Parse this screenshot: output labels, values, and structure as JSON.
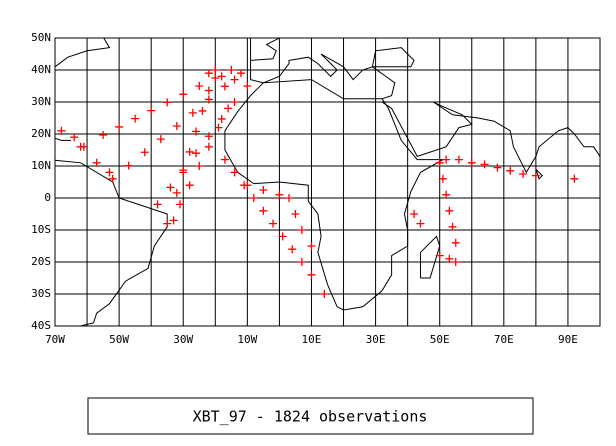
{
  "chart_data": {
    "type": "scatter",
    "title": "XBT_97 - 1824 observations",
    "color": "#ff0000",
    "xlim": [
      -70,
      100
    ],
    "ylim": [
      -40,
      50
    ],
    "xticks": [
      {
        "value": -70,
        "label": "70W"
      },
      {
        "value": -50,
        "label": "50W"
      },
      {
        "value": -30,
        "label": "30W"
      },
      {
        "value": -10,
        "label": "10W"
      },
      {
        "value": 10,
        "label": "10E"
      },
      {
        "value": 30,
        "label": "30E"
      },
      {
        "value": 50,
        "label": "50E"
      },
      {
        "value": 70,
        "label": "70E"
      },
      {
        "value": 90,
        "label": "90E"
      }
    ],
    "xgrid": [
      -60,
      -40,
      -20,
      0,
      20,
      40,
      60,
      80,
      100
    ],
    "yticks": [
      {
        "value": -40,
        "label": "40S"
      },
      {
        "value": -30,
        "label": "30S"
      },
      {
        "value": -20,
        "label": "20S"
      },
      {
        "value": -10,
        "label": "10S"
      },
      0,
      {
        "value": 10,
        "label": "10N"
      },
      {
        "value": 20,
        "label": "20N"
      },
      {
        "value": 30,
        "label": "30N"
      },
      {
        "value": 40,
        "label": "40N"
      },
      {
        "value": 50,
        "label": "50N"
      }
    ],
    "grid": true,
    "x": [
      -15,
      -20,
      -25,
      -30,
      -35,
      -40,
      -45,
      -50,
      -55,
      -62,
      -12,
      -17,
      -22,
      -27,
      -32,
      -37,
      -42,
      -47,
      -52,
      -20,
      -22,
      -24,
      -26,
      -28,
      -30,
      -32,
      -35,
      -14,
      -18,
      -22,
      -26,
      -30,
      -34,
      -38,
      -16,
      -19,
      -22,
      -25,
      -28,
      -31,
      -33,
      -68,
      -64,
      -61,
      -57,
      -53,
      -17,
      -14,
      -11,
      -8,
      -5,
      -2,
      1,
      4,
      7,
      10,
      14,
      -10,
      -5,
      0,
      3,
      5,
      7,
      10,
      -22,
      -18,
      -14,
      -10,
      52,
      56,
      60,
      64,
      68,
      72,
      76,
      80,
      50,
      51,
      52,
      53,
      54,
      55,
      55,
      50,
      53,
      42,
      44,
      92
    ],
    "y": [
      40,
      37.5,
      35,
      32.4,
      29.9,
      27.3,
      24.8,
      22.2,
      19.7,
      16,
      39,
      34.9,
      30.8,
      26.6,
      22.5,
      18.4,
      14.3,
      10.1,
      6,
      40,
      33.6,
      27.2,
      20.8,
      14.4,
      8,
      1.6,
      -8,
      30,
      24.7,
      19.3,
      14,
      8.7,
      3.3,
      -2,
      28,
      22,
      16,
      10,
      4,
      -2,
      -7,
      21,
      19,
      16,
      11,
      8,
      12,
      8,
      4,
      0,
      -4,
      -8,
      -12,
      -16,
      -20,
      -24,
      -30,
      4,
      2.5,
      1,
      0,
      -5,
      -10,
      -15,
      39,
      38,
      37,
      35,
      12,
      12,
      11,
      10.5,
      9.5,
      8.5,
      7.5,
      7,
      11,
      6,
      1,
      -4,
      -9,
      -14,
      -20,
      -18,
      -19,
      -5,
      -8,
      6
    ]
  }
}
